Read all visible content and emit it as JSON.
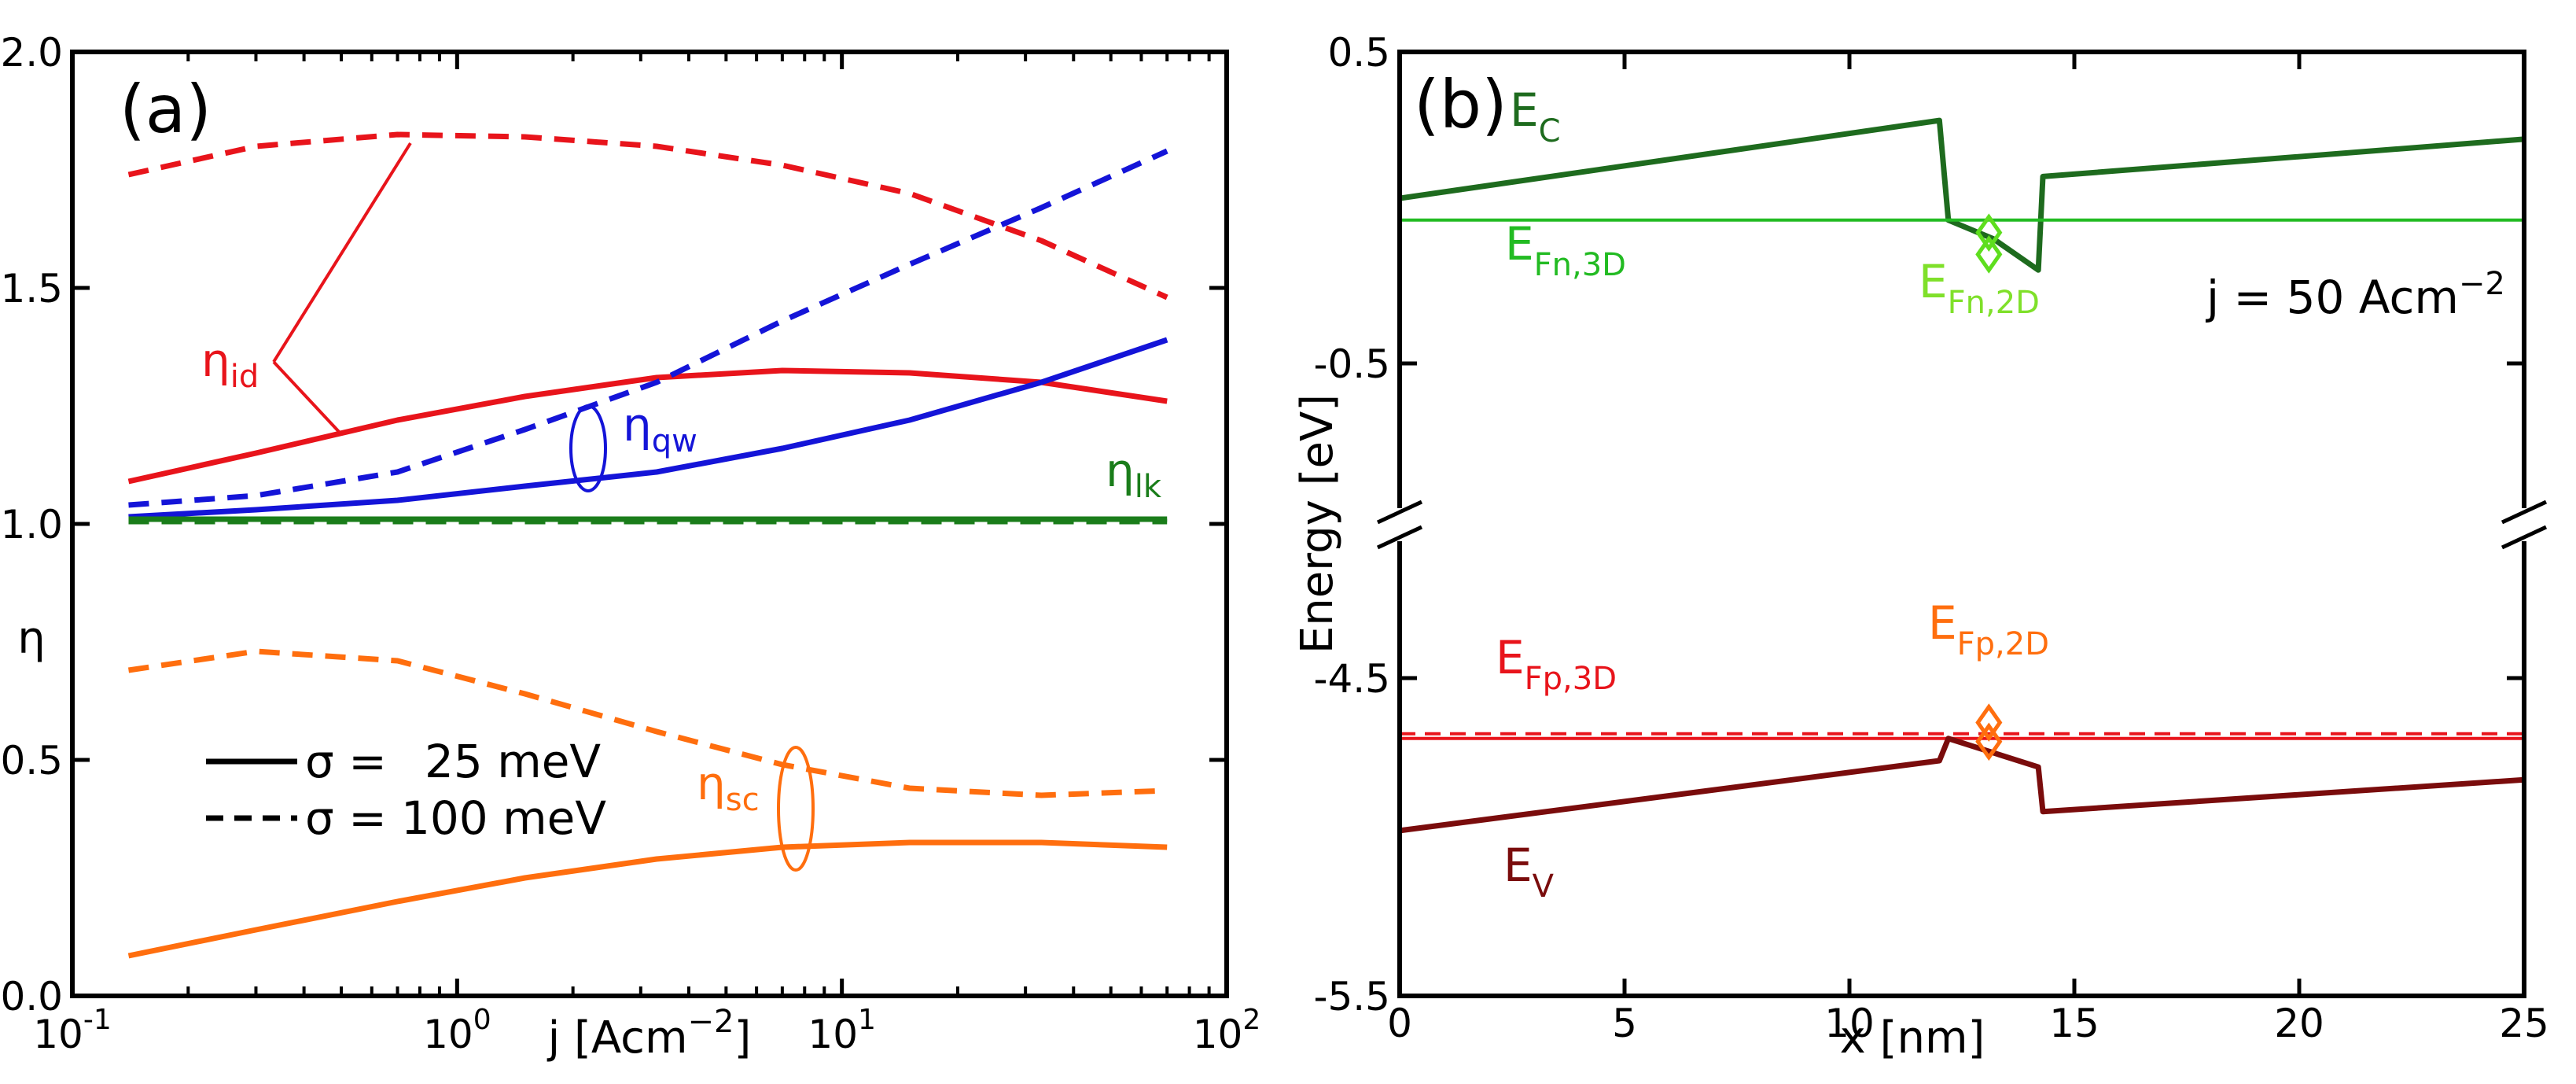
{
  "chart_data": [
    {
      "panel": "(a)",
      "type": "line",
      "xscale": "log",
      "xlim": [
        0.1,
        100
      ],
      "ylim": [
        0,
        2.0
      ],
      "xlabel": "j [Acm",
      "xlabel_sup": "−2",
      "xlabel_close": "]",
      "ylabel": "η",
      "x_ticks": [
        {
          "value": 0.1,
          "base": "10",
          "exp": "-1"
        },
        {
          "value": 1,
          "base": "10",
          "exp": "0"
        },
        {
          "value": 10,
          "base": "10",
          "exp": "1"
        },
        {
          "value": 100,
          "base": "10",
          "exp": "2"
        }
      ],
      "y_ticks": [
        "0.0",
        "0.5",
        "1.0",
        "1.5",
        "2.0"
      ],
      "y_tick_values": [
        0,
        0.5,
        1.0,
        1.5,
        2.0
      ],
      "x": [
        0.14,
        0.3,
        0.7,
        1.5,
        3.3,
        7,
        15,
        33,
        70
      ],
      "series": [
        {
          "name": "η_id, σ = 25 meV",
          "color": "#e8141b",
          "style": "solid",
          "values": [
            1.09,
            1.15,
            1.22,
            1.27,
            1.31,
            1.325,
            1.32,
            1.3,
            1.26
          ]
        },
        {
          "name": "η_id, σ = 100 meV",
          "color": "#e8141b",
          "style": "dashed",
          "values": [
            1.74,
            1.8,
            1.825,
            1.82,
            1.8,
            1.76,
            1.7,
            1.6,
            1.48
          ]
        },
        {
          "name": "η_qw, σ = 25 meV",
          "color": "#1414d8",
          "style": "solid",
          "values": [
            1.015,
            1.03,
            1.05,
            1.08,
            1.11,
            1.16,
            1.22,
            1.3,
            1.39
          ]
        },
        {
          "name": "η_qw, σ = 100 meV",
          "color": "#1414d8",
          "style": "dashed",
          "values": [
            1.04,
            1.06,
            1.11,
            1.2,
            1.3,
            1.43,
            1.55,
            1.67,
            1.79
          ]
        },
        {
          "name": "η_lk, σ = 25 meV",
          "color": "#1a7d1a",
          "style": "solid",
          "values": [
            1.01,
            1.01,
            1.01,
            1.01,
            1.01,
            1.01,
            1.01,
            1.01,
            1.01
          ]
        },
        {
          "name": "η_lk, σ = 100 meV",
          "color": "#1a7d1a",
          "style": "dashed",
          "values": [
            1.005,
            1.005,
            1.005,
            1.005,
            1.005,
            1.005,
            1.005,
            1.005,
            1.005
          ]
        },
        {
          "name": "η_sc, σ = 25 meV",
          "color": "#ff6e0e",
          "style": "solid",
          "values": [
            0.085,
            0.14,
            0.2,
            0.25,
            0.29,
            0.315,
            0.325,
            0.325,
            0.315
          ]
        },
        {
          "name": "η_sc, σ = 100 meV",
          "color": "#ff6e0e",
          "style": "dashed",
          "values": [
            0.69,
            0.73,
            0.71,
            0.64,
            0.56,
            0.49,
            0.44,
            0.425,
            0.435
          ]
        }
      ],
      "legend": [
        {
          "sym": "σ =",
          "val": "25 meV",
          "style": "solid"
        },
        {
          "sym": "σ =",
          "val": "100 meV",
          "style": "dashed"
        }
      ],
      "annotations": [
        {
          "id": "eta_id",
          "text": "η",
          "sub": "id",
          "color": "#e8141b",
          "at": {
            "x": 0.145,
            "y": 1.36
          }
        },
        {
          "id": "eta_qw",
          "text": "η",
          "sub": "qw",
          "color": "#1414d8",
          "at": {
            "x": 2.2,
            "y": 1.2
          }
        },
        {
          "id": "eta_lk",
          "text": "η",
          "sub": "lk",
          "color": "#1a7d1a",
          "at": {
            "x": 40,
            "y": 1.06
          }
        },
        {
          "id": "eta_sc",
          "text": "η",
          "sub": "sc",
          "color": "#ff6e0e",
          "at": {
            "x": 3.3,
            "y": 0.38
          }
        }
      ]
    },
    {
      "panel": "(b)",
      "type": "line",
      "xlim": [
        0,
        25
      ],
      "ylim_upper": [
        -0.5,
        0.5
      ],
      "ylim_lower": [
        -5.5,
        -4.5
      ],
      "xlabel": "x [nm]",
      "ylabel": "Energy [eV]",
      "x_ticks": [
        "0",
        "5",
        "10",
        "15",
        "20",
        "25"
      ],
      "x_tick_values": [
        0,
        5,
        10,
        15,
        20,
        25
      ],
      "y_ticks_upper": [
        "0.5",
        "-0.5"
      ],
      "y_ticks_lower": [
        "-4.5",
        "-5.5"
      ],
      "annotation_j": "j = 50 Acm",
      "annotation_j_sup": "−2",
      "series": [
        {
          "name": "E_C",
          "color": "#1e6b1e",
          "region": "upper",
          "x": [
            0,
            12,
            12.2,
            13.2,
            14.2,
            14.3,
            25
          ],
          "y": [
            0.03,
            0.28,
            -0.04,
            -0.1,
            -0.2,
            0.1,
            0.22
          ]
        },
        {
          "name": "E_Fn,3D",
          "color": "#22bb22",
          "region": "upper",
          "x": [
            0,
            25
          ],
          "y": [
            -0.04,
            -0.04
          ]
        },
        {
          "name": "E_Fp,3D",
          "color": "#e8141b",
          "region": "lower",
          "x": [
            0,
            25
          ],
          "y": [
            -4.69,
            -4.69
          ]
        },
        {
          "name": "E_V",
          "color": "#7a0c0c",
          "region": "lower",
          "x": [
            0,
            12,
            12.2,
            14.2,
            14.3,
            25
          ],
          "y": [
            -4.98,
            -4.76,
            -4.69,
            -4.78,
            -4.92,
            -4.82
          ]
        }
      ],
      "points": [
        {
          "name": "E_Fn,2D",
          "color": "#5ede1e",
          "x": [
            13.1,
            13.1
          ],
          "y": [
            -0.08,
            -0.15
          ]
        },
        {
          "name": "E_Fp,2D",
          "color": "#ff6e0e",
          "x": [
            13.1,
            13.1
          ],
          "y": [
            -4.64,
            -4.7
          ]
        }
      ],
      "labels": [
        {
          "id": "ec",
          "text": "E",
          "sub": "C",
          "color": "#1e6b1e"
        },
        {
          "id": "efn3d",
          "text": "E",
          "sub": "Fn,3D",
          "color": "#22bb22"
        },
        {
          "id": "efn2d",
          "text": "E",
          "sub": "Fn,2D",
          "color": "#7fe02a"
        },
        {
          "id": "efp3d",
          "text": "E",
          "sub": "Fp,3D",
          "color": "#e8141b"
        },
        {
          "id": "efp2d",
          "text": "E",
          "sub": "Fp,2D",
          "color": "#ff6e0e"
        },
        {
          "id": "ev",
          "text": "E",
          "sub": "V",
          "color": "#7a0c0c"
        }
      ]
    }
  ]
}
